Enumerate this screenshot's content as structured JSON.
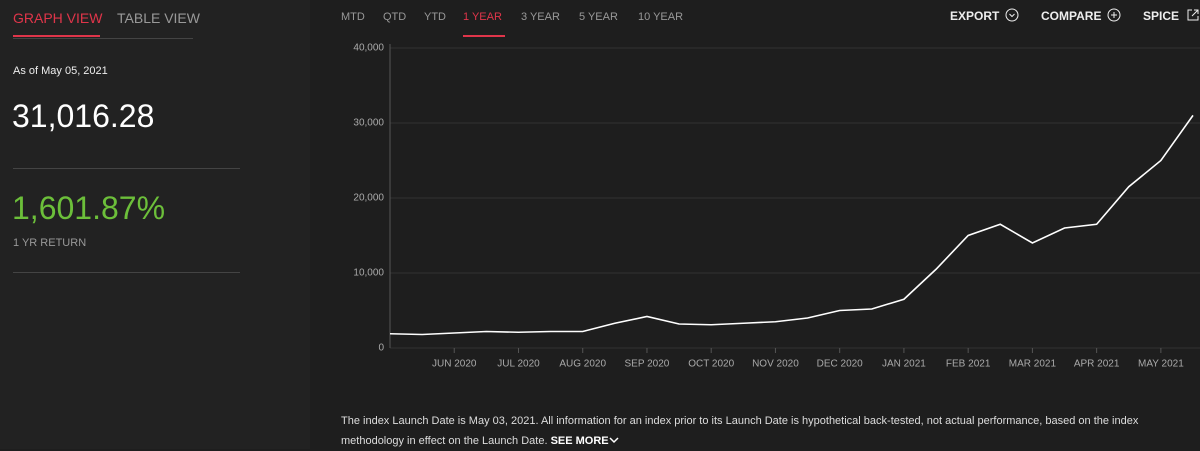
{
  "tabs": [
    "GRAPH VIEW",
    "TABLE VIEW"
  ],
  "as_of": "As of May 05, 2021",
  "level": "31,016.28",
  "return": "1,601.87%",
  "return_label": "1 YR RETURN",
  "ranges": [
    "MTD",
    "QTD",
    "YTD",
    "1 YEAR",
    "3 YEAR",
    "5 YEAR",
    "10 YEAR"
  ],
  "actions": [
    "EXPORT",
    "COMPARE",
    "SPICE"
  ],
  "chart_data": {
    "type": "line",
    "color": "#ffffff",
    "grid": true,
    "categories": [
      null,
      null,
      "JUN 2020",
      null,
      "JUL 2020",
      null,
      "AUG 2020",
      null,
      "SEP 2020",
      null,
      "OCT 2020",
      null,
      "NOV 2020",
      null,
      "DEC 2020",
      null,
      "JAN 2021",
      null,
      "FEB 2021",
      null,
      "MAR 2021",
      null,
      "APR 2021",
      null,
      "MAY 2021",
      null
    ],
    "values": [
      1900,
      1800,
      2000,
      2200,
      2100,
      2200,
      2200,
      3300,
      4200,
      3200,
      3100,
      3300,
      3500,
      4000,
      5000,
      5200,
      6500,
      10500,
      15000,
      16500,
      14000,
      16000,
      16500,
      21500,
      25000,
      31016.28
    ],
    "ylim": [
      0,
      40000
    ],
    "yticks": [
      0,
      {
        "value": 10000,
        "label": "10,000"
      },
      {
        "value": 20000,
        "label": "20,000"
      },
      {
        "value": 30000,
        "label": "30,000"
      },
      {
        "value": 40000,
        "label": "40,000"
      }
    ]
  },
  "disclaimer": "The index Launch Date is May 03, 2021.  All information for an index prior to its Launch Date is hypothetical back-tested, not actual performance, based on the index methodology in effect on the Launch Date.",
  "see_more": "SEE MORE"
}
